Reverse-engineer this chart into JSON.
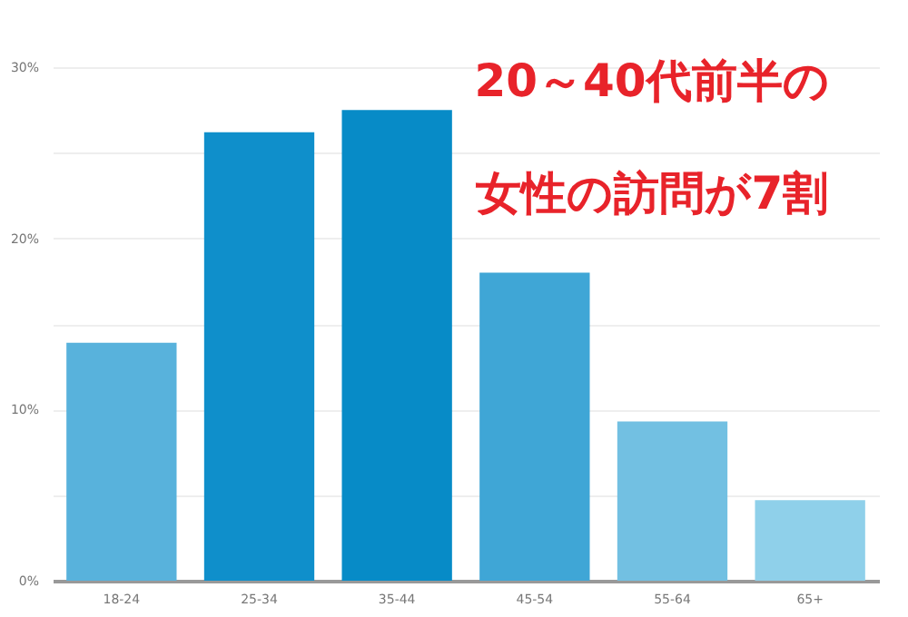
{
  "chart_data": {
    "type": "bar",
    "categories": [
      "18-24",
      "25-34",
      "35-44",
      "45-54",
      "55-64",
      "65+"
    ],
    "values": [
      13.9,
      26.2,
      27.5,
      18.0,
      9.3,
      4.7
    ],
    "colors": [
      "#58b2dc",
      "#0f8fcb",
      "#078bc7",
      "#3fa6d6",
      "#72c0e2",
      "#8fd0ea"
    ],
    "ylim": [
      0,
      30
    ],
    "yticks": [
      {
        "value": 0,
        "label": "0%"
      },
      {
        "value": 5,
        "label": null
      },
      {
        "value": 10,
        "label": "10%"
      },
      {
        "value": 15,
        "label": null
      },
      {
        "value": 20,
        "label": "20%"
      },
      {
        "value": 25,
        "label": null
      },
      {
        "value": 30,
        "label": "30%"
      }
    ],
    "grid": "y",
    "annotations": [
      "20～40代前半の",
      "女性の訪問が7割"
    ]
  }
}
